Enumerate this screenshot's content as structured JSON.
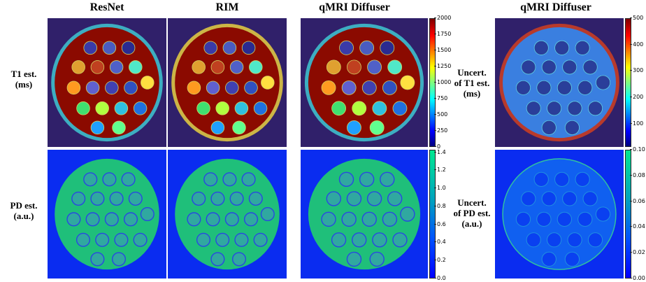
{
  "columns": {
    "c1": "ResNet",
    "c2": "RIM",
    "c3": "qMRI Diffuser",
    "c4": "qMRI Diffuser"
  },
  "row_labels": {
    "t1": [
      "T1 est.",
      "(ms)"
    ],
    "pd": [
      "PD est.",
      "(a.u.)"
    ],
    "unc_t1": [
      "Uncert.",
      "of T1 est.",
      "(ms)"
    ],
    "unc_pd": [
      "Uncert.",
      "of PD est.",
      "(a.u.)"
    ]
  },
  "colorbars": {
    "t1": [
      "2000",
      "1750",
      "1500",
      "1250",
      "1000",
      "750",
      "500",
      "250",
      "0"
    ],
    "unc_t1": [
      "500",
      "400",
      "300",
      "200",
      "100"
    ],
    "pd": [
      "1.4",
      "1.2",
      "1.0",
      "0.8",
      "0.6",
      "0.4",
      "0.2",
      "0.0"
    ],
    "unc_pd": [
      "0.10",
      "0.08",
      "0.06",
      "0.04",
      "0.02",
      "0.00"
    ]
  },
  "colors": {
    "jet_dark": "#00007f",
    "t1_background": "#30206a",
    "t1_fill": "#8b0a00",
    "pd_background": "#0a2cf0",
    "pd_fill": "#1fbf7a",
    "unc_fill": "#3a7fe0"
  }
}
